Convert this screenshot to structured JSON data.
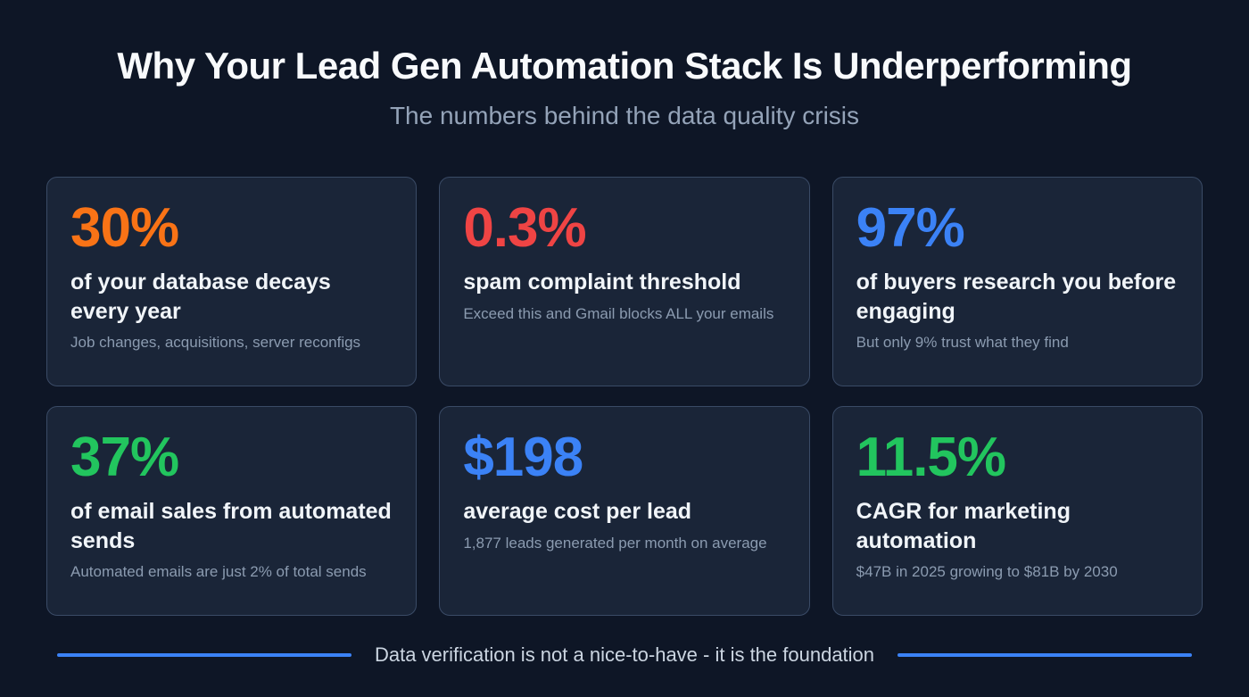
{
  "page": {
    "title": "Why Your Lead Gen Automation Stack Is Underperforming",
    "subtitle": "The numbers behind the data quality crisis"
  },
  "colors": {
    "background": "#0e1626",
    "card_background": "#1a2538",
    "card_border": "#3a4b66",
    "orange": "#f97316",
    "red": "#ef4444",
    "blue": "#3b82f6",
    "green": "#22c55e"
  },
  "cards": [
    {
      "value": "30%",
      "color": "#f97316",
      "heading": "of your database decays every year",
      "subtext": "Job changes, acquisitions, server reconfigs"
    },
    {
      "value": "0.3%",
      "color": "#ef4444",
      "heading": "spam complaint threshold",
      "subtext": "Exceed this and Gmail blocks ALL your emails"
    },
    {
      "value": "97%",
      "color": "#3b82f6",
      "heading": "of buyers research you before engaging",
      "subtext": "But only 9% trust what they find"
    },
    {
      "value": "37%",
      "color": "#22c55e",
      "heading": "of email sales from automated sends",
      "subtext": "Automated emails are just 2% of total sends"
    },
    {
      "value": "$198",
      "color": "#3b82f6",
      "heading": "average cost per lead",
      "subtext": "1,877 leads generated per month on average"
    },
    {
      "value": "11.5%",
      "color": "#22c55e",
      "heading": "CAGR for marketing automation",
      "subtext": "$47B in 2025 growing to $81B by 2030"
    }
  ],
  "footer": {
    "text": "Data verification is not a nice-to-have - it is the foundation",
    "line_color": "#3b82f6"
  }
}
